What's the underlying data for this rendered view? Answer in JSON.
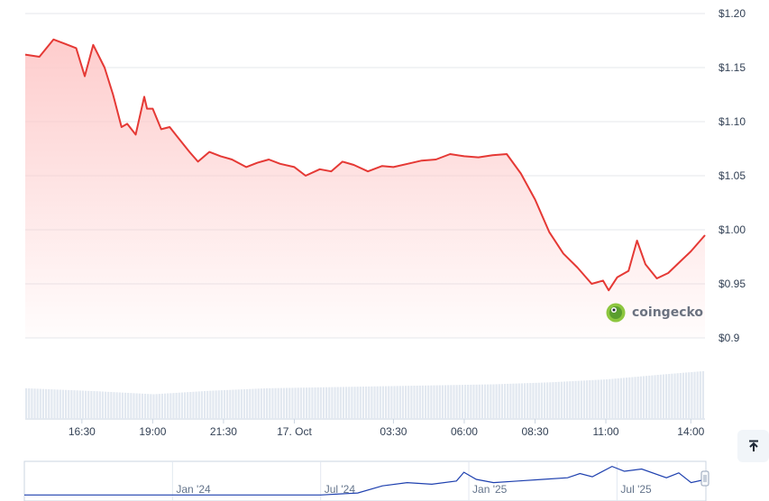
{
  "brand": {
    "name": "coingecko",
    "logo_icon": "gecko-icon"
  },
  "colors": {
    "line": "#e53935",
    "area": "#fecaca",
    "volume": "#e2e8f0",
    "navigator": "#1e40af",
    "grid": "#e5e7eb"
  },
  "scroll_top_icon": "arrow-up-to-line-icon",
  "chart_data": {
    "type": "line",
    "title": "",
    "xlabel": "",
    "ylabel": "",
    "y_ticks": [
      "$0.9",
      "$0.95",
      "$1.00",
      "$1.05",
      "$1.10",
      "$1.15",
      "$1.20"
    ],
    "y_tick_values": [
      0.9,
      0.95,
      1.0,
      1.05,
      1.1,
      1.15,
      1.2
    ],
    "ylim": [
      0.9,
      1.2
    ],
    "x_ticks": [
      "16:30",
      "19:00",
      "21:30",
      "17. Oct",
      "03:30",
      "06:00",
      "08:30",
      "11:00",
      "14:00"
    ],
    "x_tick_hours": [
      2.5,
      5,
      7.5,
      10,
      13.5,
      16,
      18.5,
      21,
      24
    ],
    "xlim_hours": [
      0.5,
      24.5
    ],
    "series": [
      {
        "x_hours": [
          0.5,
          1.0,
          1.5,
          1.9,
          2.3,
          2.6,
          2.9,
          3.3,
          3.6,
          3.9,
          4.1,
          4.4,
          4.7,
          4.8,
          5.0,
          5.3,
          5.6,
          5.9,
          6.3,
          6.6,
          7.0,
          7.4,
          7.8,
          8.3,
          8.7,
          9.1,
          9.5,
          10.0,
          10.4,
          10.9,
          11.3,
          11.7,
          12.1,
          12.6,
          13.1,
          13.5,
          14.0,
          14.5,
          15.0,
          15.5,
          16.0,
          16.5,
          17.0,
          17.5,
          18.0,
          18.5,
          19.0,
          19.5,
          20.0,
          20.5,
          20.9,
          21.1,
          21.4,
          21.8,
          22.1,
          22.4,
          22.8,
          23.2,
          23.6,
          24.0,
          24.5
        ],
        "values": [
          1.162,
          1.16,
          1.176,
          1.172,
          1.168,
          1.142,
          1.171,
          1.15,
          1.125,
          1.095,
          1.098,
          1.088,
          1.123,
          1.112,
          1.112,
          1.093,
          1.095,
          1.085,
          1.072,
          1.063,
          1.072,
          1.068,
          1.065,
          1.058,
          1.062,
          1.065,
          1.061,
          1.058,
          1.05,
          1.056,
          1.054,
          1.063,
          1.06,
          1.054,
          1.059,
          1.058,
          1.061,
          1.064,
          1.065,
          1.07,
          1.068,
          1.067,
          1.069,
          1.07,
          1.052,
          1.028,
          0.998,
          0.978,
          0.965,
          0.95,
          0.953,
          0.944,
          0.956,
          0.962,
          0.99,
          0.968,
          0.955,
          0.96,
          0.97,
          0.98,
          0.995
        ]
      }
    ],
    "volume": {
      "x_hours": [
        0.5,
        3,
        5,
        7,
        9,
        11,
        13,
        15,
        17,
        19,
        21,
        23,
        24.5
      ],
      "relative": [
        0.62,
        0.56,
        0.5,
        0.57,
        0.62,
        0.64,
        0.66,
        0.68,
        0.7,
        0.74,
        0.8,
        0.9,
        0.97
      ]
    },
    "navigator": {
      "x_ticks": [
        "Jan '24",
        "Jul '24",
        "Jan '25",
        "Jul '25"
      ],
      "x_tick_months": [
        6,
        12,
        18,
        24
      ],
      "xlim_months": [
        0,
        27.6
      ],
      "x_months": [
        0,
        3,
        6,
        9,
        12,
        13.5,
        14.5,
        15.5,
        16.5,
        17.5,
        17.8,
        18.3,
        19.0,
        20.0,
        21.0,
        22.0,
        22.5,
        23.0,
        23.3,
        23.8,
        24.3,
        25.0,
        26.0,
        26.5,
        27.0,
        27.6
      ],
      "relative": [
        0.02,
        0.02,
        0.02,
        0.02,
        0.02,
        0.08,
        0.3,
        0.4,
        0.35,
        0.45,
        0.72,
        0.5,
        0.4,
        0.45,
        0.5,
        0.55,
        0.68,
        0.58,
        0.7,
        0.9,
        0.75,
        0.82,
        0.55,
        0.7,
        0.4,
        0.5
      ]
    }
  }
}
